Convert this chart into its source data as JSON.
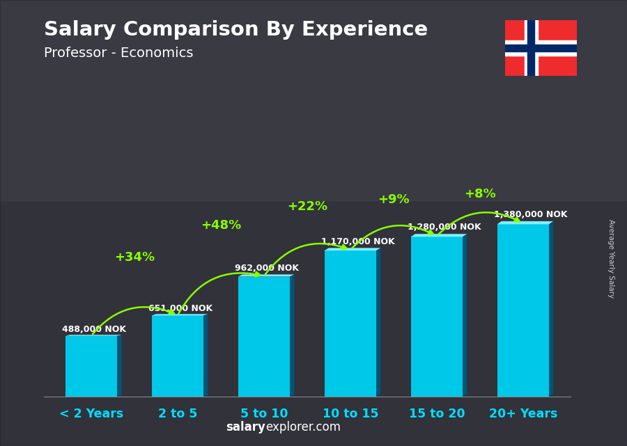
{
  "title": "Salary Comparison By Experience",
  "subtitle": "Professor - Economics",
  "categories": [
    "< 2 Years",
    "2 to 5",
    "5 to 10",
    "10 to 15",
    "15 to 20",
    "20+ Years"
  ],
  "values": [
    488000,
    651000,
    962000,
    1170000,
    1280000,
    1380000
  ],
  "labels": [
    "488,000 NOK",
    "651,000 NOK",
    "962,000 NOK",
    "1,170,000 NOK",
    "1,280,000 NOK",
    "1,380,000 NOK"
  ],
  "pct_changes": [
    "+34%",
    "+48%",
    "+22%",
    "+9%",
    "+8%"
  ],
  "bar_face_color": "#00c8e8",
  "bar_left_color": "#008fb8",
  "bar_top_color": "#80eeff",
  "bar_right_color": "#005577",
  "bg_overlay_color": "#333344",
  "bg_overlay_alpha": 0.55,
  "title_color": "#ffffff",
  "subtitle_color": "#ffffff",
  "label_color": "#ffffff",
  "pct_color": "#88ff00",
  "arrow_color": "#88ff00",
  "xlabel_color": "#00ddff",
  "watermark_bold": "salary",
  "watermark_rest": "explorer.com",
  "ylabel_text": "Average Yearly Salary",
  "figsize": [
    9.0,
    6.41
  ],
  "dpi": 100,
  "bar_width": 0.6,
  "ylim_factor": 1.55,
  "flag_red": "#EF2B2D",
  "flag_blue": "#002868"
}
